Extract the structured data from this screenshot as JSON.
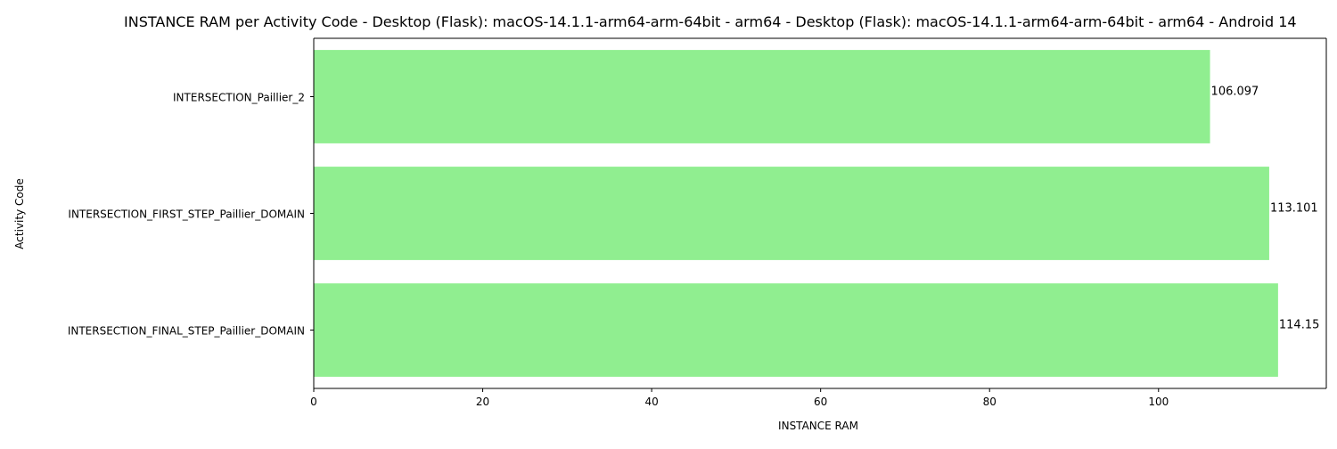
{
  "chart_data": {
    "type": "bar",
    "orientation": "horizontal",
    "title": "INSTANCE RAM per Activity Code - Desktop (Flask): macOS-14.1.1-arm64-arm-64bit - arm64 - Desktop (Flask): macOS-14.1.1-arm64-arm-64bit - arm64 - Android 14",
    "xlabel": "INSTANCE RAM",
    "ylabel": "Activity Code",
    "categories": [
      "INTERSECTION_Paillier_2",
      "INTERSECTION_FIRST_STEP_Paillier_DOMAIN",
      "INTERSECTION_FINAL_STEP_Paillier_DOMAIN"
    ],
    "values": [
      106.097,
      113.101,
      114.15
    ],
    "value_labels": [
      "106.097",
      "113.101",
      "114.15"
    ],
    "xlim": [
      0,
      119.86
    ],
    "xticks": [
      0,
      20,
      40,
      60,
      80,
      100
    ],
    "xtick_labels": [
      "0",
      "20",
      "40",
      "60",
      "80",
      "100"
    ],
    "bar_color": "#90ee90",
    "grid": false
  }
}
